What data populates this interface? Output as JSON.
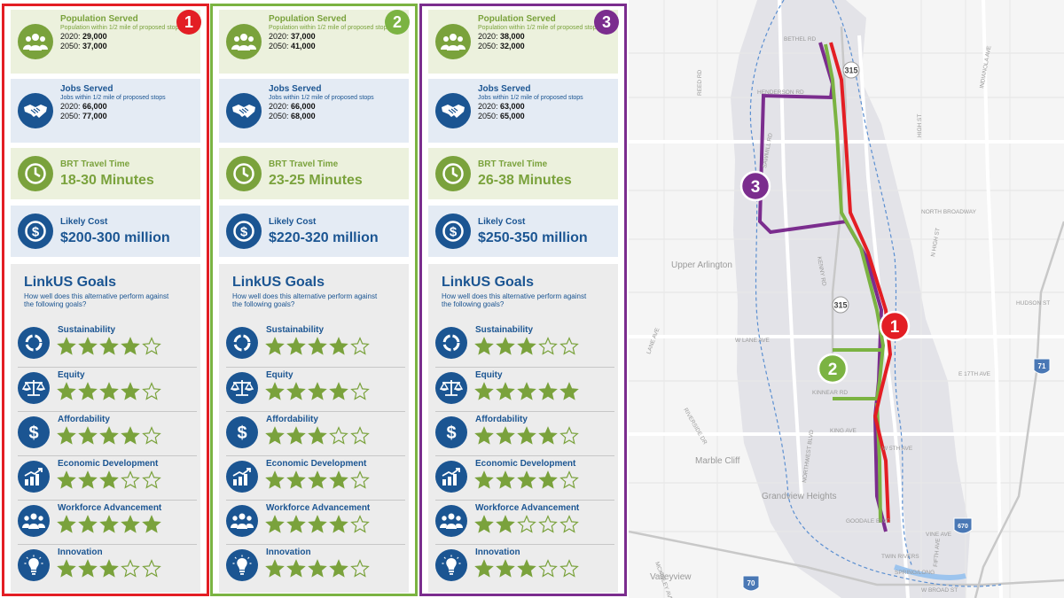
{
  "alternatives": [
    {
      "number": "1",
      "accent": "#e31e24",
      "population": {
        "title": "Population Served",
        "subtitle": "Population within 1/2 mile of proposed stops",
        "y2020_label": "2020:",
        "y2020_value": "29,000",
        "y2050_label": "2050:",
        "y2050_value": "37,000"
      },
      "jobs": {
        "title": "Jobs Served",
        "subtitle": "Jobs within 1/2 mile of proposed stops",
        "y2020_label": "2020:",
        "y2020_value": "66,000",
        "y2050_label": "2050:",
        "y2050_value": "77,000"
      },
      "travel": {
        "title": "BRT Travel Time",
        "value": "18-30 Minutes"
      },
      "cost": {
        "title": "Likely Cost",
        "value": "$200-300 million"
      },
      "ratings": [
        4,
        4,
        4,
        3,
        5,
        3
      ]
    },
    {
      "number": "2",
      "accent": "#7bb342",
      "population": {
        "title": "Population Served",
        "subtitle": "Population within 1/2 mile of proposed stops",
        "y2020_label": "2020:",
        "y2020_value": "37,000",
        "y2050_label": "2050:",
        "y2050_value": "41,000"
      },
      "jobs": {
        "title": "Jobs Served",
        "subtitle": "Jobs within 1/2 mile of proposed stops",
        "y2020_label": "2020:",
        "y2020_value": "66,000",
        "y2050_label": "2050:",
        "y2050_value": "68,000"
      },
      "travel": {
        "title": "BRT Travel Time",
        "value": "23-25 Minutes"
      },
      "cost": {
        "title": "Likely Cost",
        "value": "$220-320 million"
      },
      "ratings": [
        4,
        4,
        3,
        4,
        4,
        4
      ]
    },
    {
      "number": "3",
      "accent": "#7b2d8e",
      "population": {
        "title": "Population Served",
        "subtitle": "Population within 1/2 mile of proposed stops",
        "y2020_label": "2020:",
        "y2020_value": "38,000",
        "y2050_label": "2050:",
        "y2050_value": "32,000"
      },
      "jobs": {
        "title": "Jobs Served",
        "subtitle": "Jobs within 1/2 mile of proposed stops",
        "y2020_label": "2020:",
        "y2020_value": "63,000",
        "y2050_label": "2050:",
        "y2050_value": "65,000"
      },
      "travel": {
        "title": "BRT Travel Time",
        "value": "26-38 Minutes"
      },
      "cost": {
        "title": "Likely Cost",
        "value": "$250-350 million"
      },
      "ratings": [
        3,
        5,
        4,
        4,
        2,
        3
      ]
    }
  ],
  "goals": {
    "title": "LinkUS Goals",
    "question": "How well does this alternative perform against the following goals?",
    "items": [
      {
        "label": "Sustainability",
        "icon": "recycle-icon"
      },
      {
        "label": "Equity",
        "icon": "scales-icon"
      },
      {
        "label": "Affordability",
        "icon": "dollar-icon"
      },
      {
        "label": "Economic Development",
        "icon": "growth-chart-icon"
      },
      {
        "label": "Workforce Advancement",
        "icon": "people-group-icon"
      },
      {
        "label": "Innovation",
        "icon": "lightbulb-icon"
      }
    ]
  },
  "map": {
    "labels": {
      "bethel": "BETHEL RD",
      "henderson": "HENDERSON RD",
      "reed": "REED RD",
      "sawmill": "SAWMILL RD",
      "kenny": "KENNY RD",
      "upper_arlington": "Upper Arlington",
      "north_broadway": "NORTH BROADWAY",
      "high_st": "HIGH ST",
      "n_high_st": "N HIGH ST",
      "indianola": "INDIANOLA AVE",
      "hudson": "HUDSON ST",
      "lane_ave": "LANE AVE",
      "w_lane_ave": "W LANE AVE",
      "kinnear": "KINNEAR RD",
      "e17th": "E 17TH AVE",
      "riverside": "RIVERSIDE DR",
      "king": "KING AVE",
      "w5th": "W 5TH AVE",
      "northwest": "NORTHWEST BLVD",
      "marble_cliff": "Marble Cliff",
      "grandview": "Grandview Heights",
      "goodale": "GOODALE BLVD",
      "vine": "VINE AVE",
      "fifth": "FIFTH AVE",
      "twin_rivers": "TWIN RIVERS",
      "spring_long": "SPRING/LONG",
      "w_broad": "W BROAD ST",
      "valleyview": "Valleyview",
      "mckinley": "MCKINLEY AVE",
      "shield_315a": "315",
      "shield_315b": "315",
      "shield_71": "71",
      "shield_670": "670",
      "shield_70": "70",
      "route1": "1",
      "route2": "2",
      "route3": "3"
    }
  }
}
